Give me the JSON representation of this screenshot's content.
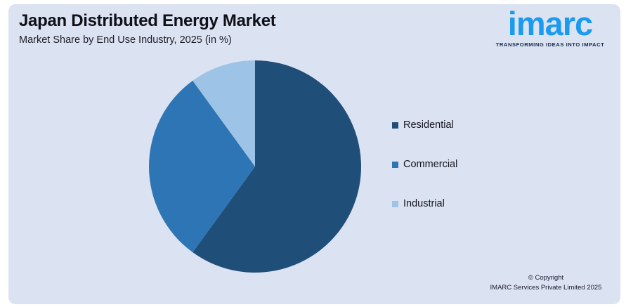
{
  "header": {
    "title": "Japan Distributed Energy Market",
    "subtitle": "Market Share by End Use Industry, 2025 (in %)"
  },
  "logo": {
    "wordmark": "imarc",
    "tagline": "TRANSFORMING IDEAS INTO IMPACT",
    "brand_color": "#1b9bf0",
    "tagline_color": "#12294d"
  },
  "chart_data": {
    "type": "pie",
    "title": "Japan Distributed Energy Market",
    "subtitle": "Market Share by End Use Industry, 2025 (in %)",
    "labels": [
      "Residential",
      "Commercial",
      "Industrial"
    ],
    "values": [
      60,
      30,
      10
    ],
    "unit": "%",
    "colors": [
      "#1f4e79",
      "#2e75b6",
      "#9dc3e6"
    ],
    "start_angle_deg": 0,
    "direction": "clockwise",
    "legend_position": "right",
    "data_labels_shown": false
  },
  "footer": {
    "copyright_line1": "© Copyright",
    "copyright_line2": "IMARC Services Private Limited 2025"
  },
  "theme": {
    "page_background": "#ffffff",
    "card_background": "#dbe2f1",
    "text_color": "#14141e"
  }
}
